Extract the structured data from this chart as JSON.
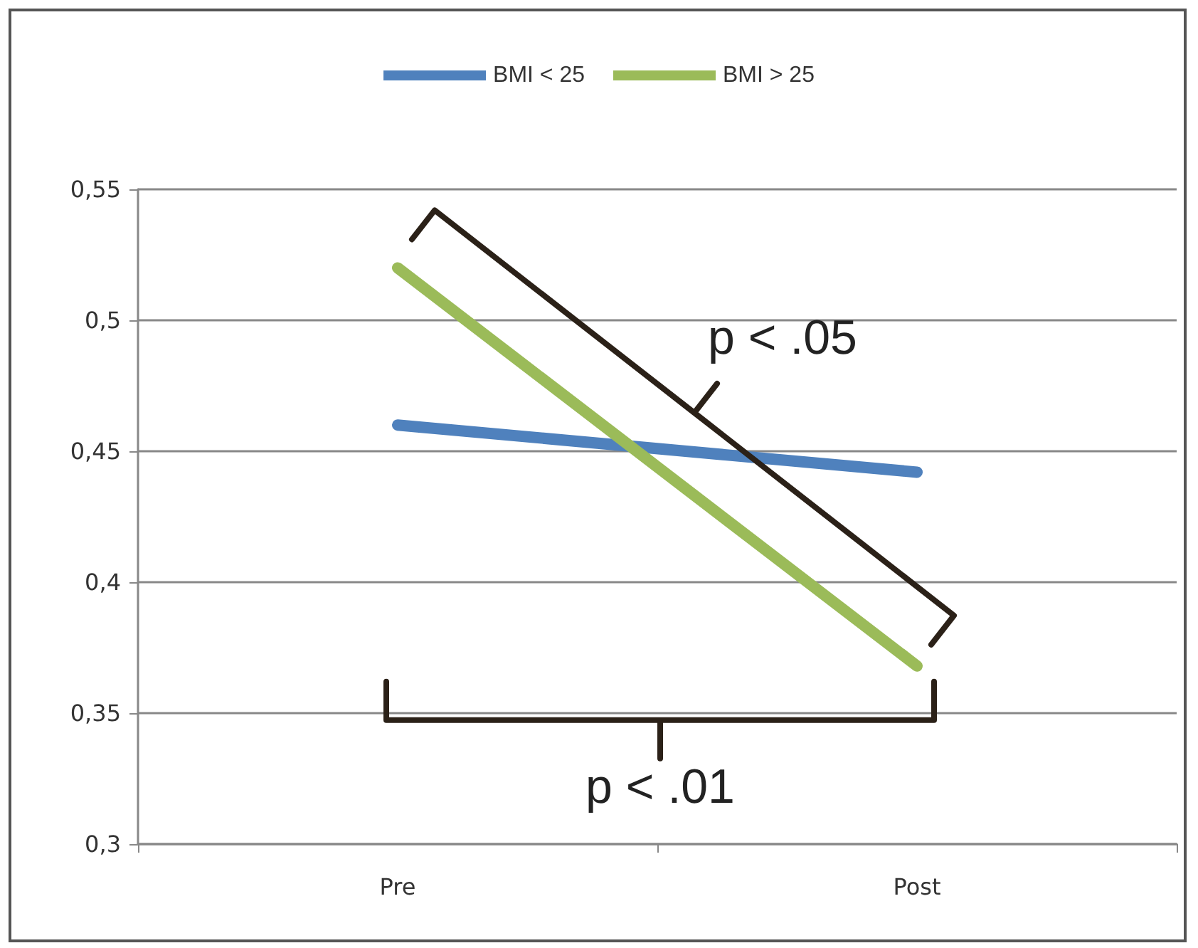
{
  "chart_data": {
    "type": "line",
    "categories": [
      "Pre",
      "Post"
    ],
    "series": [
      {
        "name": "BMI < 25",
        "color": "#4f81bd",
        "values": [
          0.46,
          0.442
        ]
      },
      {
        "name": "BMI > 25",
        "color": "#9bbb59",
        "values": [
          0.52,
          0.368
        ]
      }
    ],
    "ylim": [
      0.3,
      0.55
    ],
    "yticks": [
      {
        "value": 0.3,
        "label": "0,3"
      },
      {
        "value": 0.35,
        "label": "0,35"
      },
      {
        "value": 0.4,
        "label": "0,4"
      },
      {
        "value": 0.45,
        "label": "0,45"
      },
      {
        "value": 0.5,
        "label": "0,5"
      },
      {
        "value": 0.55,
        "label": "0,55"
      }
    ],
    "grid": "y",
    "legend": "top",
    "marker": "none",
    "line_style": "solid",
    "annotations": [
      "p < .05",
      "p < .01"
    ]
  }
}
